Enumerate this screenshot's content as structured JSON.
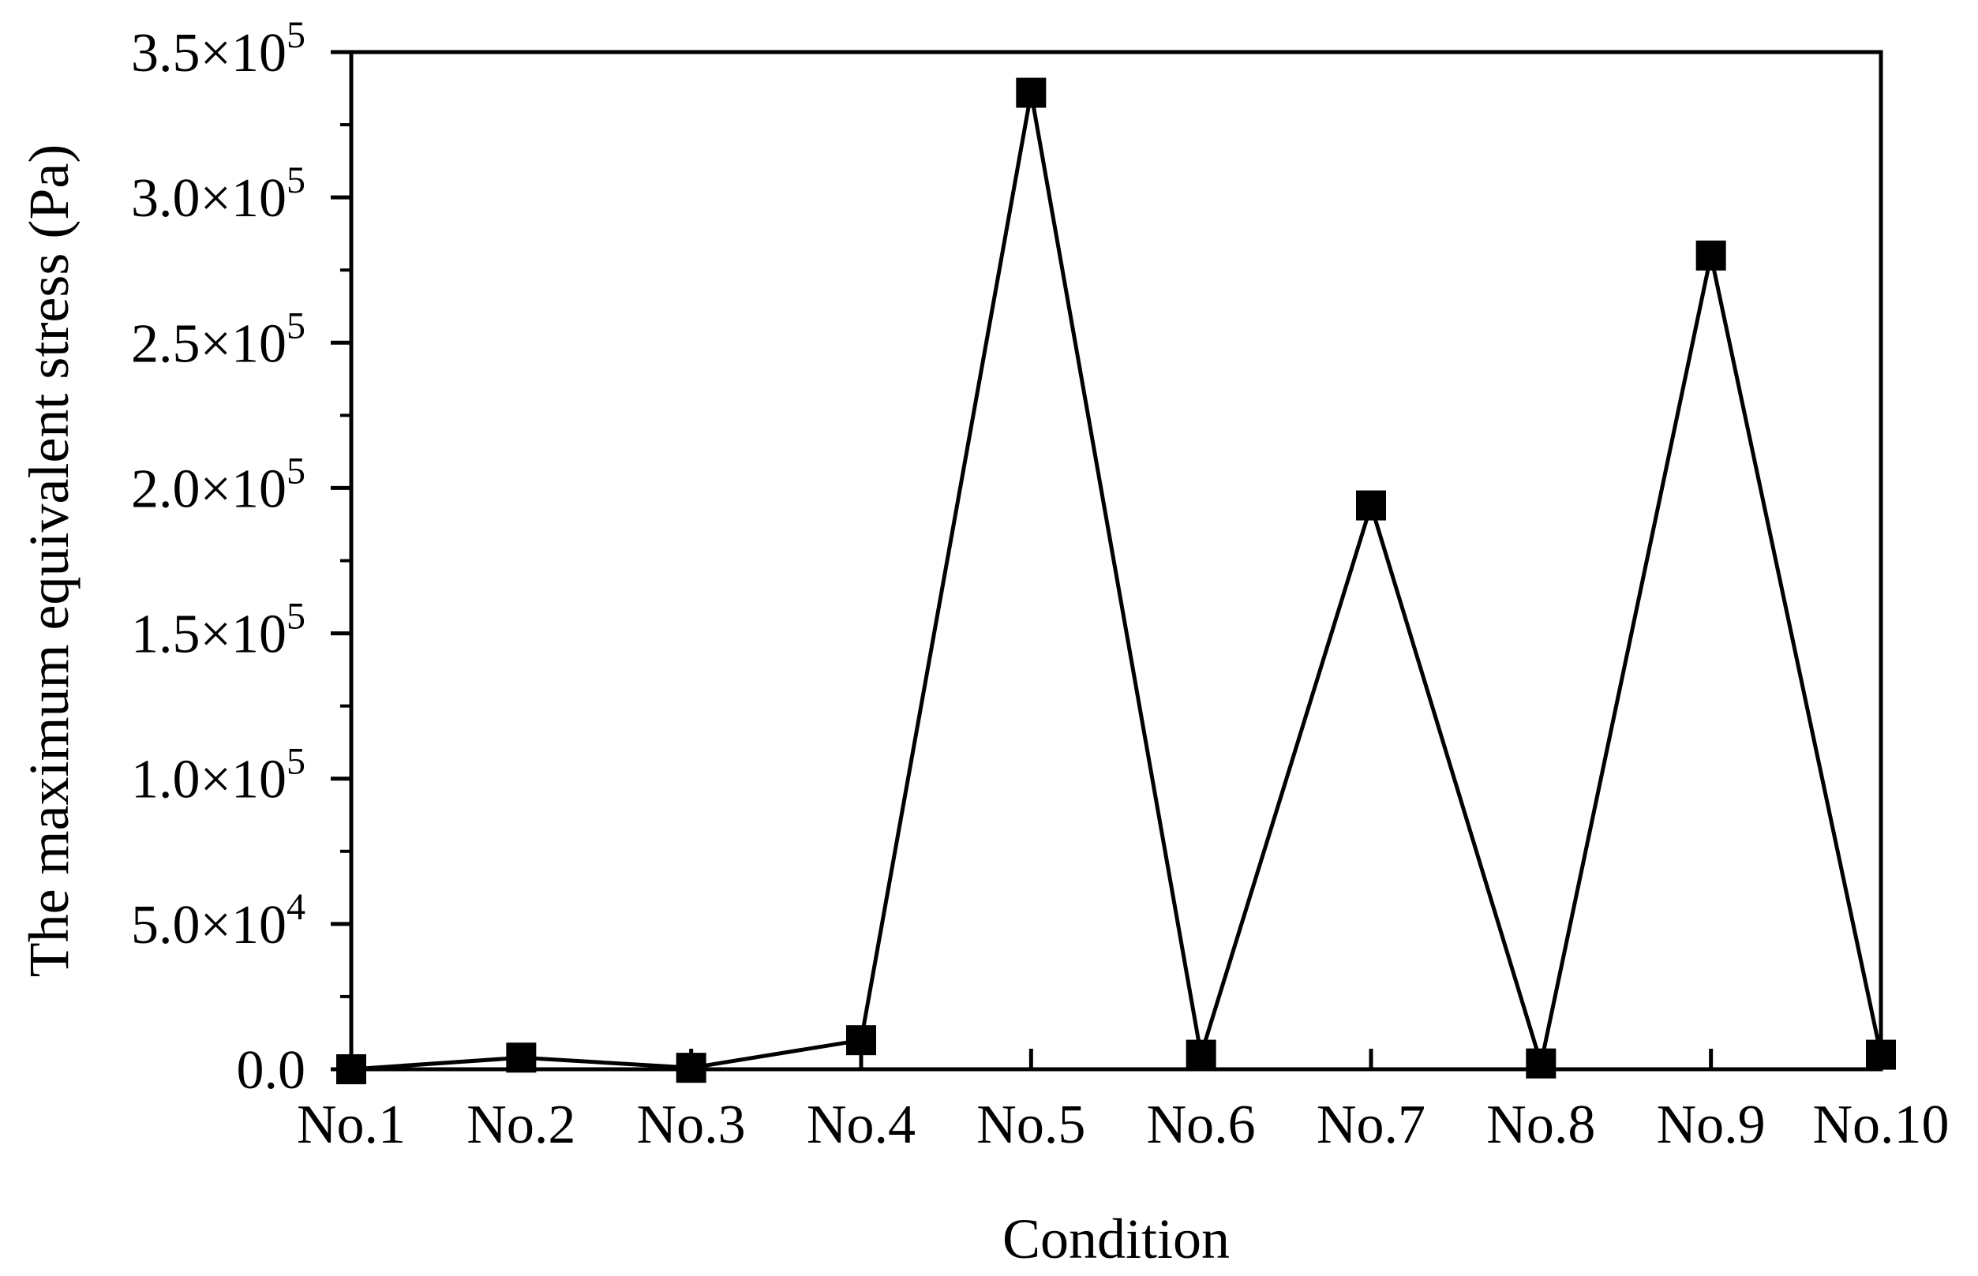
{
  "chart_data": {
    "type": "line",
    "title": "",
    "xlabel": "Condition",
    "ylabel": "The maximum equivalent stress (Pa)",
    "categories": [
      "No.1",
      "No.2",
      "No.3",
      "No.4",
      "No.5",
      "No.6",
      "No.7",
      "No.8",
      "No.9",
      "No.10"
    ],
    "series": [
      {
        "values": [
          0,
          4000,
          500,
          10000,
          336000,
          5000,
          194000,
          2000,
          280000,
          5000
        ],
        "marker": "square",
        "color": "#000000"
      }
    ],
    "ylim": [
      0,
      350000
    ],
    "yticks": [
      {
        "value": 0,
        "mantissa": "0.0",
        "exponent": ""
      },
      {
        "value": 50000,
        "mantissa": "5.0×10",
        "exponent": "4"
      },
      {
        "value": 100000,
        "mantissa": "1.0×10",
        "exponent": "5"
      },
      {
        "value": 150000,
        "mantissa": "1.5×10",
        "exponent": "5"
      },
      {
        "value": 200000,
        "mantissa": "2.0×10",
        "exponent": "5"
      },
      {
        "value": 250000,
        "mantissa": "2.5×10",
        "exponent": "5"
      },
      {
        "value": 300000,
        "mantissa": "3.0×10",
        "exponent": "5"
      },
      {
        "value": 350000,
        "mantissa": "3.5×10",
        "exponent": "5"
      }
    ],
    "grid": false,
    "legend": "none"
  }
}
